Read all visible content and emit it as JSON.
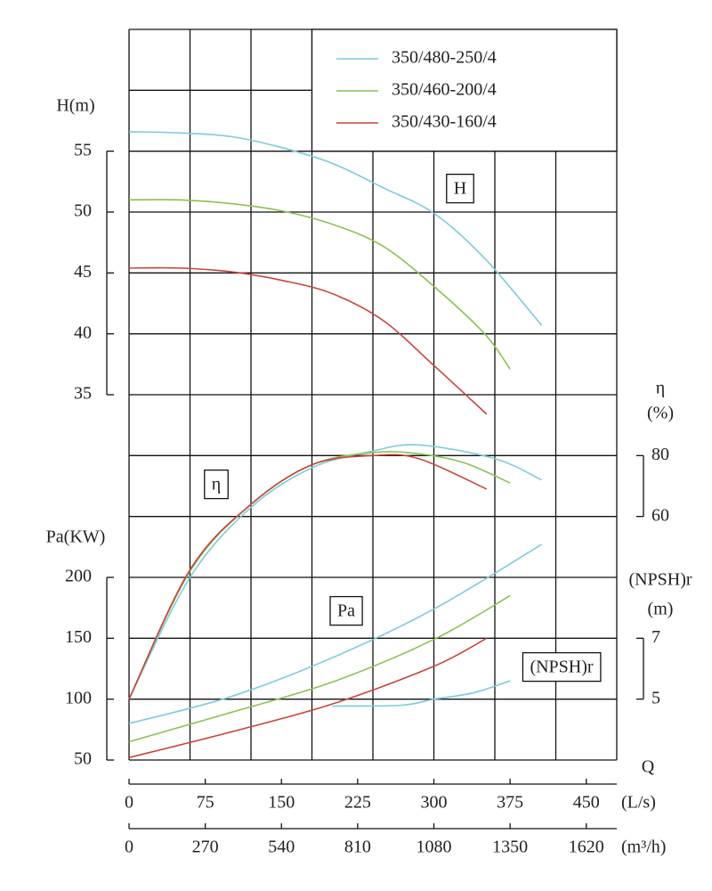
{
  "chart_data": {
    "type": "line",
    "x_title": "Q",
    "x_axes": [
      {
        "label": "(L/s)",
        "xlim": [
          0,
          480
        ],
        "xticks": [
          0,
          75,
          150,
          225,
          300,
          375,
          450
        ]
      },
      {
        "label": "(m³/h)",
        "xlim": [
          0,
          1728
        ],
        "xticks": [
          0,
          270,
          540,
          810,
          1080,
          1350,
          1620
        ]
      }
    ],
    "y_axes": {
      "H": {
        "title": [
          "H(m)"
        ],
        "ylim": [
          5,
          65
        ],
        "yticks": [
          35,
          40,
          45,
          50,
          55
        ]
      },
      "eta": {
        "title": [
          "η",
          "(%)"
        ],
        "ylim": [
          -20,
          220
        ],
        "yticks": [
          60,
          80
        ]
      },
      "Pa": {
        "title": [
          "Pa(KW)"
        ],
        "ylim": [
          50,
          650
        ],
        "yticks": [
          50,
          100,
          150,
          200
        ]
      },
      "NPSH": {
        "title": [
          "(NPSH)r",
          "(m)"
        ],
        "ylim": [
          3,
          27
        ],
        "yticks": [
          5,
          7
        ]
      }
    },
    "series": [
      {
        "name": "350/480-250/4",
        "color": "#7ccbdc",
        "H": {
          "x": [
            0,
            50,
            100,
            150,
            200,
            250,
            300,
            350,
            406
          ],
          "values": [
            56.6,
            56.5,
            56.2,
            55.3,
            54.0,
            52.0,
            49.9,
            46.2,
            40.7
          ]
        },
        "eta": {
          "x": [
            0,
            60,
            120,
            180,
            240,
            285,
            360,
            406
          ],
          "values": [
            0,
            40,
            63,
            76,
            81.5,
            83.5,
            79,
            72
          ]
        },
        "Pa": {
          "x": [
            0,
            100,
            200,
            300,
            406
          ],
          "values": [
            80,
            102,
            134,
            174,
            227
          ]
        },
        "NPSH": {
          "x": [
            200,
            268,
            300,
            338,
            375
          ],
          "values": [
            4.77,
            4.8,
            5.0,
            5.2,
            5.6
          ]
        }
      },
      {
        "name": "350/460-200/4",
        "color": "#8cc152",
        "H": {
          "x": [
            0,
            50,
            100,
            150,
            200,
            250,
            300,
            350,
            375
          ],
          "values": [
            51.0,
            51.0,
            50.7,
            50.1,
            49.0,
            47.2,
            43.9,
            40.0,
            37.1
          ]
        },
        "eta": {
          "x": [
            0,
            60,
            120,
            180,
            240,
            285,
            330,
            375
          ],
          "values": [
            0,
            42,
            64,
            77,
            81,
            80.6,
            77.6,
            71
          ]
        },
        "Pa": {
          "x": [
            0,
            100,
            200,
            300,
            375
          ],
          "values": [
            65,
            89,
            114,
            149,
            185
          ]
        }
      },
      {
        "name": "350/430-160/4",
        "color": "#c8453c",
        "H": {
          "x": [
            0,
            50,
            100,
            150,
            200,
            250,
            300,
            352
          ],
          "values": [
            45.4,
            45.4,
            45.1,
            44.4,
            43.3,
            41.1,
            37.4,
            33.4
          ]
        },
        "eta": {
          "x": [
            0,
            60,
            120,
            180,
            240,
            285,
            352
          ],
          "values": [
            0,
            42.5,
            64,
            77,
            80,
            79,
            69
          ]
        },
        "Pa": {
          "x": [
            0,
            100,
            200,
            300,
            352
          ],
          "values": [
            52,
            73,
            96,
            127,
            150
          ]
        }
      }
    ],
    "annotations": [
      "H",
      "η",
      "Pa",
      "(NPSH)r"
    ]
  }
}
